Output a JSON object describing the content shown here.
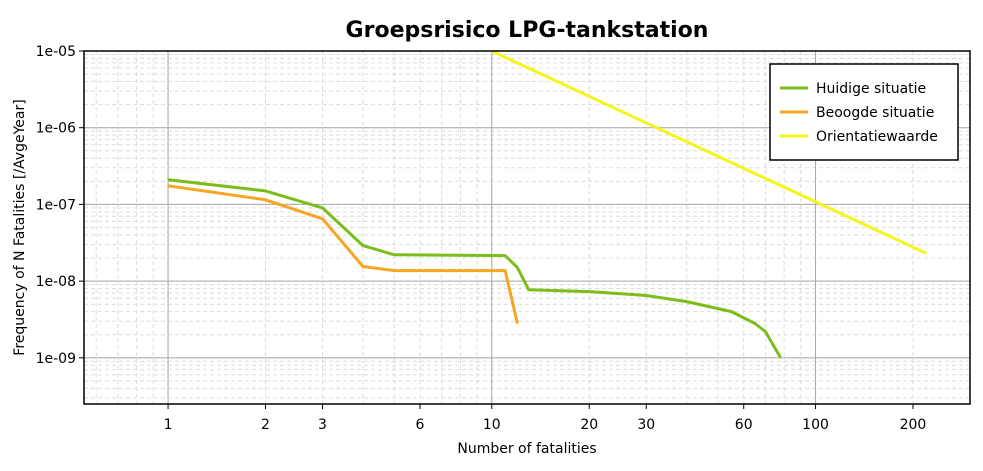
{
  "chart_data": {
    "type": "line",
    "title": "Groepsrisico LPG-tankstation",
    "xlabel": "Number of fatalities",
    "ylabel": "Frequency of N Fatalities [/AvgeYear]",
    "x_scale": "log",
    "y_scale": "log",
    "xlim": [
      0.55,
      300
    ],
    "ylim": [
      2.5e-10,
      1e-05
    ],
    "x_ticks": [
      1,
      2,
      3,
      6,
      10,
      20,
      30,
      60,
      100,
      200
    ],
    "x_tick_labels": [
      "1",
      "2",
      "3",
      "6",
      "10",
      "20",
      "30",
      "60",
      "100",
      "200"
    ],
    "y_ticks": [
      1e-05,
      1e-06,
      1e-07,
      1e-08,
      1e-09
    ],
    "y_tick_labels": [
      "1e-05",
      "1e-06",
      "1e-07",
      "1e-08",
      "1e-09"
    ],
    "grid": true,
    "legend_position": "top-right",
    "series": [
      {
        "name": "Huidige situatie",
        "color": "#7dbd1b",
        "points": [
          [
            1,
            2.1e-07
          ],
          [
            2,
            1.5e-07
          ],
          [
            3,
            9e-08
          ],
          [
            4,
            2.9e-08
          ],
          [
            5,
            2.2e-08
          ],
          [
            11,
            2.15e-08
          ],
          [
            12,
            1.5e-08
          ],
          [
            13,
            7.7e-09
          ],
          [
            20,
            7.3e-09
          ],
          [
            30,
            6.5e-09
          ],
          [
            40,
            5.4e-09
          ],
          [
            55,
            4e-09
          ],
          [
            65,
            2.8e-09
          ],
          [
            70,
            2.2e-09
          ],
          [
            78,
            1e-09
          ]
        ]
      },
      {
        "name": "Beoogde situatie",
        "color": "#f6a623",
        "points": [
          [
            1,
            1.75e-07
          ],
          [
            2,
            1.15e-07
          ],
          [
            3,
            6.5e-08
          ],
          [
            4,
            1.55e-08
          ],
          [
            5,
            1.37e-08
          ],
          [
            11,
            1.37e-08
          ],
          [
            12,
            2.8e-09
          ]
        ]
      },
      {
        "name": "Orientatiewaarde",
        "color": "#f5f51e",
        "points": [
          [
            10,
            1e-05
          ],
          [
            220,
            2.3e-08
          ]
        ]
      }
    ]
  }
}
